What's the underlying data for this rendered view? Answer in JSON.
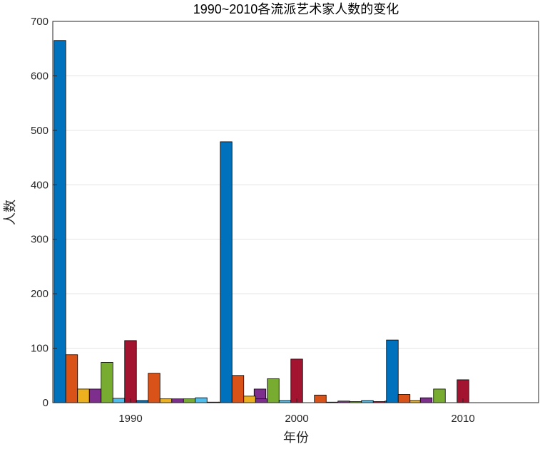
{
  "chart_data": {
    "type": "bar",
    "title": "1990~2010各流派艺术家人数的变化",
    "xlabel": "年份",
    "ylabel": "人数",
    "categories": [
      "1990",
      "2000",
      "2010"
    ],
    "ylim": [
      0,
      700
    ],
    "yticks": [
      0,
      100,
      200,
      300,
      400,
      500,
      600,
      700
    ],
    "grid": true,
    "legend": "none",
    "series": [
      {
        "color": "#0072BD",
        "values": [
          665,
          479,
          115
        ]
      },
      {
        "color": "#D95319",
        "values": [
          88,
          50,
          15
        ]
      },
      {
        "color": "#EDB120",
        "values": [
          25,
          12,
          0
        ]
      },
      {
        "color": "#7E2F8E",
        "values": [
          25,
          7,
          0
        ]
      },
      {
        "color": "#77AC30",
        "values": [
          74,
          44,
          25
        ]
      },
      {
        "color": "#4DBEEE",
        "values": [
          8,
          4,
          0
        ]
      },
      {
        "color": "#A2142F",
        "values": [
          114,
          80,
          42
        ]
      },
      {
        "color": "#0072BD",
        "values": [
          4,
          0,
          0
        ]
      },
      {
        "color": "#D95319",
        "values": [
          54,
          14,
          0
        ]
      },
      {
        "color": "#EDB120",
        "values": [
          7,
          1,
          0
        ]
      },
      {
        "color": "#7E2F8E",
        "values": [
          7,
          3,
          0
        ]
      },
      {
        "color": "#77AC30",
        "values": [
          7,
          2,
          0
        ]
      },
      {
        "color": "#4DBEEE",
        "values": [
          9,
          4,
          0
        ]
      },
      {
        "color": "#A2142F",
        "values": [
          1,
          2,
          0
        ]
      },
      {
        "color": "#0072BD",
        "values": [
          1,
          3,
          0
        ]
      },
      {
        "color": "#D95319",
        "values": [
          3,
          4,
          0
        ]
      },
      {
        "color": "#EDB120",
        "values": [
          4,
          4,
          0
        ]
      },
      {
        "color": "#7E2F8E",
        "values": [
          25,
          9,
          0
        ]
      }
    ]
  }
}
